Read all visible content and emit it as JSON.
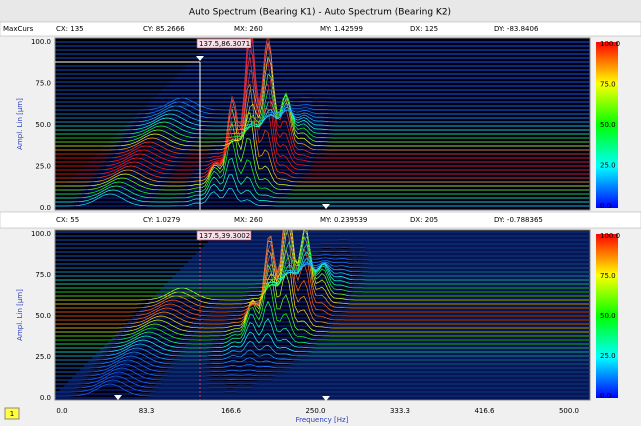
{
  "title": "Auto Spectrum (Bearing K1) - Auto Spectrum (Bearing K2)",
  "panels": [
    {
      "cursor_label": "MaxCurs",
      "readouts": [
        "CX: 135",
        "CY: 85.2666",
        "MX: 260",
        "MY: 1.42599",
        "DX: 125",
        "DY: -83.8406"
      ],
      "marker_label": "137.5,86.3071",
      "y_axis_label": "Ampl. Lin [µm]",
      "yticks": [
        "100.0",
        "75.0",
        "50.0",
        "25.0",
        "0.0"
      ],
      "colorbar_ticks": [
        "100.0",
        "75.0",
        "50.0",
        "25.0",
        "0.0"
      ]
    },
    {
      "readouts": [
        "CX: 55",
        "CY: 1.0279",
        "MX: 260",
        "MY: 0.239539",
        "DX: 205",
        "DY: -0.788365"
      ],
      "marker_label": "137.5,39.3002",
      "y_axis_label": "Ampl. Lin [µm]",
      "yticks": [
        "100.0",
        "75.0",
        "50.0",
        "25.0",
        "0.0"
      ],
      "colorbar_ticks": [
        "100.0",
        "75.0",
        "50.0",
        "25.0",
        "0.0"
      ]
    }
  ],
  "x_axis": {
    "ticks": [
      "0.0",
      "83.3",
      "166.6",
      "250.0",
      "333.3",
      "416.6",
      "500.0"
    ],
    "label": "Frequency [Hz]"
  },
  "page_indicator": "1"
}
